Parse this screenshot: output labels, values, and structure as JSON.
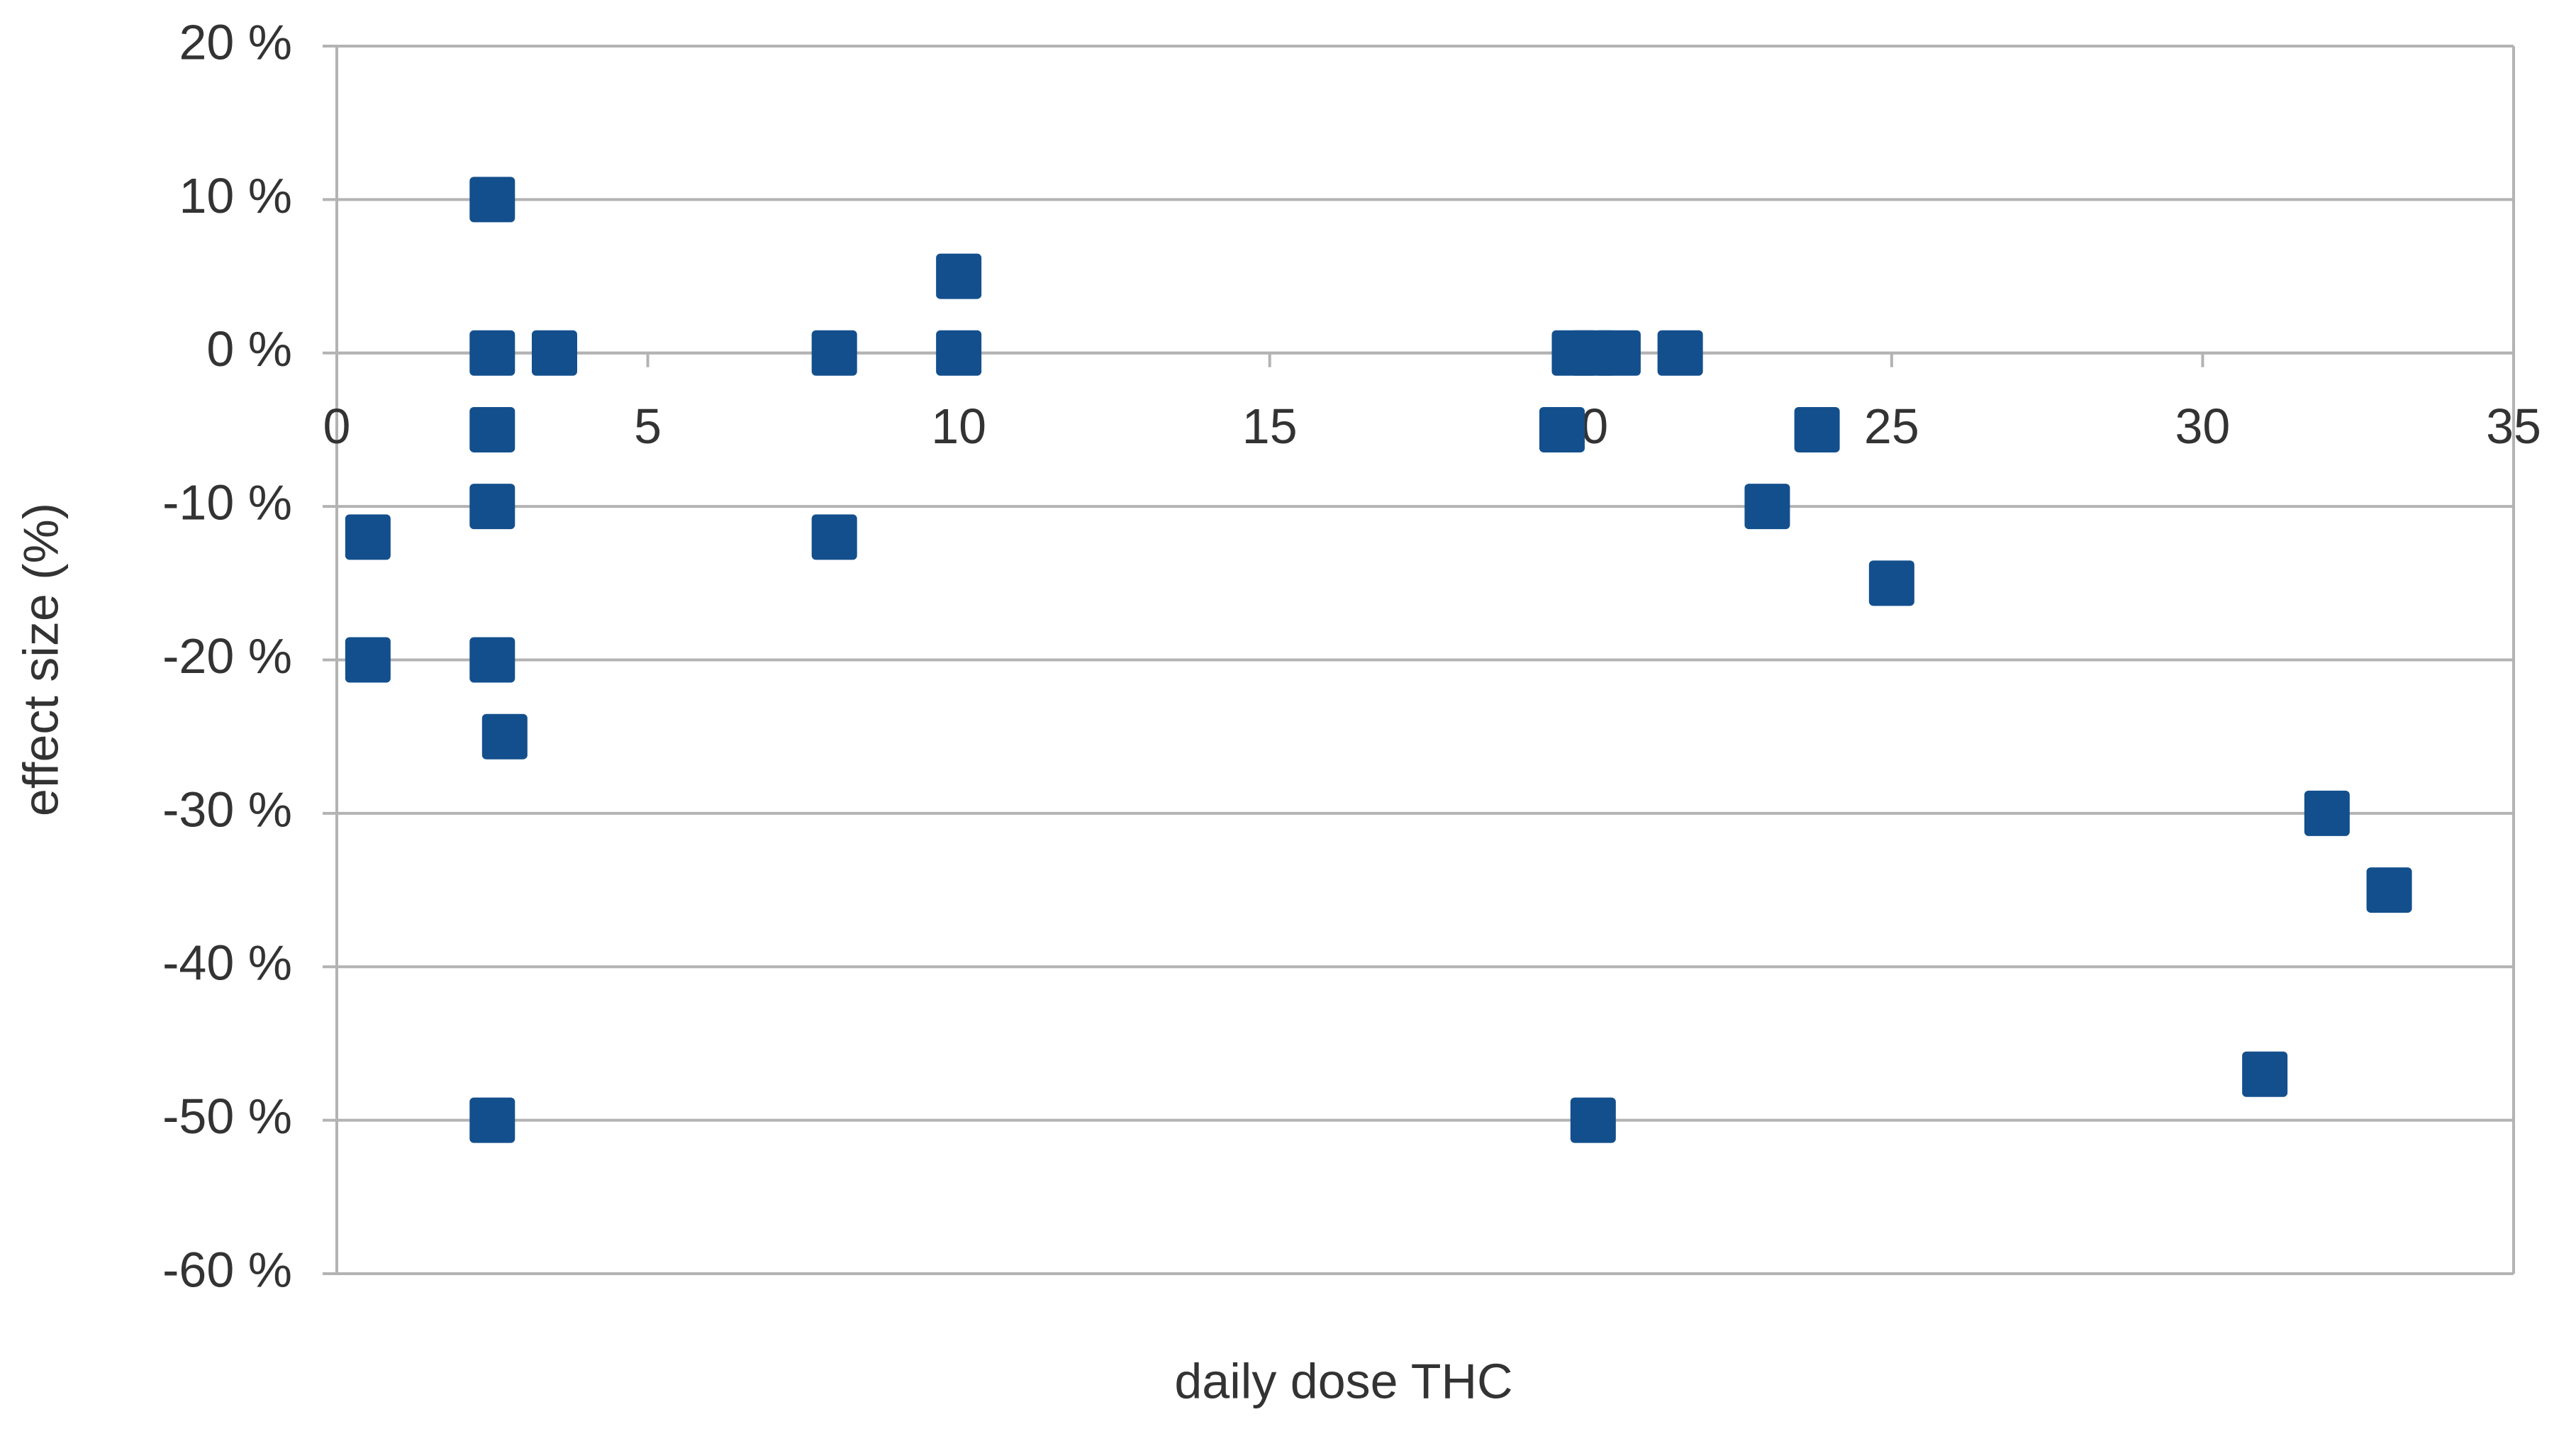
{
  "chart_data": {
    "type": "scatter",
    "x_label": "daily dose THC",
    "y_label": "effect size (%)",
    "series": [
      {
        "color": "#134f8d",
        "x": [
          2.5,
          2.5,
          3.5,
          2.5,
          2.5,
          0.5,
          0.5,
          2.5,
          2.7,
          2.5,
          8,
          8,
          10,
          10,
          19.9,
          20.2,
          20.6,
          19.7,
          21.6,
          23,
          23.8,
          25,
          20.2,
          31,
          32,
          33
        ],
        "values": [
          10,
          0,
          0,
          -5,
          -10,
          -12,
          -20,
          -20,
          -25,
          -50,
          0,
          -12,
          5,
          0,
          0,
          0,
          0,
          -5,
          0,
          -10,
          -5,
          -15,
          -50,
          -47,
          -30,
          -35
        ]
      }
    ],
    "xlim": [
      0,
      35
    ],
    "xticks": [
      0,
      5,
      10,
      15,
      20,
      25,
      30,
      35
    ],
    "ylim": [
      -60,
      20
    ],
    "yticks": [
      {
        "value": 20,
        "label": "20 %"
      },
      {
        "value": 10,
        "label": "10 %"
      },
      {
        "value": 0,
        "label": "0 %"
      },
      {
        "value": -10,
        "label": "-10 %"
      },
      {
        "value": -20,
        "label": "-20 %"
      },
      {
        "value": -30,
        "label": "-30 %"
      },
      {
        "value": -40,
        "label": "-40 %"
      },
      {
        "value": -50,
        "label": "-50 %"
      },
      {
        "value": -60,
        "label": "-60 %"
      }
    ],
    "grid": true
  }
}
